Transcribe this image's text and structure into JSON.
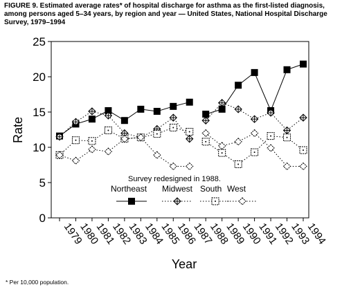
{
  "figure": {
    "title": "FIGURE 9. Estimated average rates* of hospital discharge for asthma as the first-listed diagnosis, among persons aged 5–34 years, by region and year — United States, National Hospital Discharge Survey, 1979–1994",
    "footnote": "* Per 10,000 population."
  },
  "chart_data": {
    "type": "line",
    "title": "",
    "xlabel": "Year",
    "ylabel": "Rate",
    "ylim": [
      0,
      25
    ],
    "yticks": [
      0,
      5,
      10,
      15,
      20,
      25
    ],
    "grid": false,
    "legend_position": "inside-bottom-right",
    "annotation": "Survey redesigned in 1988.",
    "annotation_x": 1988,
    "categories": [
      "1979",
      "1980",
      "1981",
      "1982",
      "1983",
      "1984",
      "1985",
      "1986",
      "1987",
      "1988",
      "1989",
      "1990",
      "1991",
      "1992",
      "1993",
      "1994"
    ],
    "series": [
      {
        "name": "Northeast",
        "marker": "filled-square",
        "line_style": "solid",
        "color": "#000000",
        "values": [
          11.6,
          13.3,
          14.0,
          15.2,
          13.8,
          15.4,
          15.1,
          15.8,
          16.4,
          14.7,
          15.4,
          18.8,
          20.6,
          15.2,
          21.0,
          21.8
        ]
      },
      {
        "name": "Midwest",
        "marker": "circle-plus",
        "line_style": "dotted",
        "color": "#000000",
        "values": [
          11.5,
          13.6,
          15.1,
          14.5,
          12.0,
          11.4,
          12.6,
          14.2,
          11.2,
          13.8,
          16.3,
          15.4,
          14.0,
          14.9,
          12.4,
          14.2
        ]
      },
      {
        "name": "South",
        "marker": "square-dot",
        "line_style": "dotted",
        "color": "#000000",
        "values": [
          8.9,
          11.0,
          10.9,
          12.4,
          11.2,
          11.4,
          11.9,
          12.8,
          12.2,
          10.8,
          9.2,
          7.6,
          9.3,
          11.6,
          11.4,
          9.6
        ]
      },
      {
        "name": "West",
        "marker": "diamond",
        "line_style": "dotted",
        "color": "#000000",
        "values": [
          8.9,
          8.1,
          9.7,
          9.4,
          11.2,
          11.4,
          8.9,
          7.3,
          7.3,
          12.0,
          10.2,
          10.8,
          12.0,
          9.9,
          7.3,
          7.3
        ]
      }
    ]
  }
}
